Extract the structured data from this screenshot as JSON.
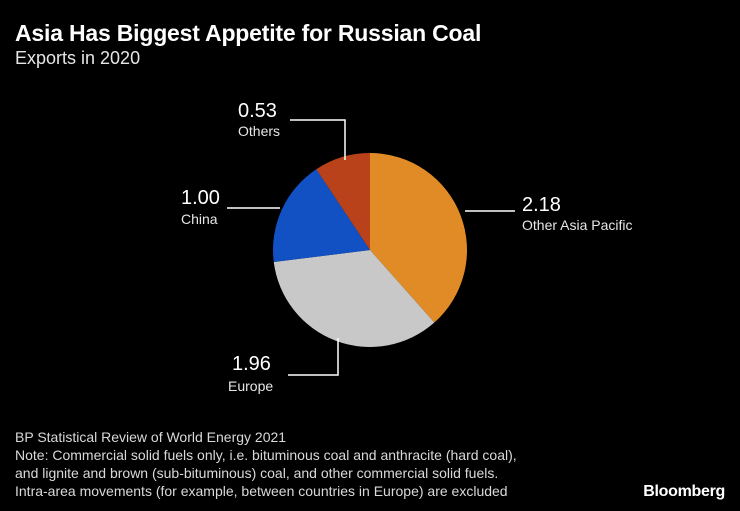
{
  "header": {
    "title": "Asia Has Biggest Appetite for Russian Coal",
    "subtitle": "Exports in 2020"
  },
  "chart_data": {
    "type": "pie",
    "slices": [
      {
        "label": "Other Asia Pacific",
        "value": 2.18,
        "display": "2.18",
        "color": "#e08b25"
      },
      {
        "label": "Europe",
        "value": 1.96,
        "display": "1.96",
        "color": "#c8c8c8"
      },
      {
        "label": "China",
        "value": 1.0,
        "display": "1.00",
        "color": "#1151c4"
      },
      {
        "label": "Others",
        "value": 0.53,
        "display": "0.53",
        "color": "#b9421a"
      }
    ],
    "start": "12 o'clock",
    "direction": "clockwise"
  },
  "footer": {
    "source": "BP Statistical Review of World Energy 2021",
    "note_line1": "Note: Commercial solid fuels only, i.e. bituminous coal and anthracite (hard coal),",
    "note_line2": "and lignite and brown (sub-bituminous) coal, and other commercial solid fuels.",
    "note_line3": "Intra-area movements (for example, between countries in Europe) are excluded"
  },
  "brand": "Bloomberg"
}
